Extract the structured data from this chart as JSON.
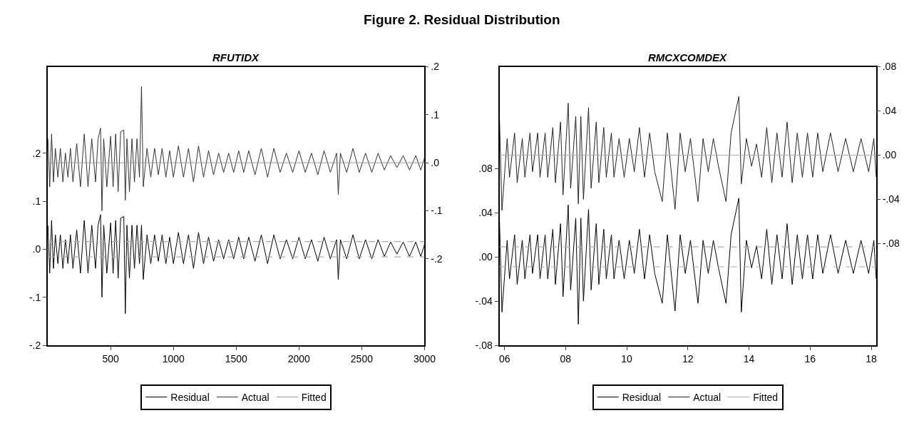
{
  "chart_data": [
    {
      "type": "line",
      "title": "Figure 2. Residual Distribution",
      "subtitle": "RFUTIDX",
      "legend": "bottom",
      "marker": "none",
      "line_style": "solid",
      "xlim": [
        0,
        3000
      ],
      "xticks": [
        500,
        1000,
        1500,
        2000,
        2500,
        3000
      ],
      "ylim": [
        -0.2,
        0.38
      ],
      "yticks": [
        {
          "value": 0.2,
          "label": ".2"
        },
        {
          "value": 0.1,
          "label": ".1"
        },
        {
          "value": 0,
          "label": ".0"
        },
        {
          "value": -0.1,
          "label": "-.1"
        },
        {
          "value": -0.2,
          "label": "-.2"
        }
      ],
      "y2lim": [
        -0.38,
        0.2
      ],
      "y2ticks": [
        {
          "value": 0.2,
          "label": ".2"
        },
        {
          "value": 0.1,
          "label": ".1"
        },
        {
          "value": 0,
          "label": ".0"
        },
        {
          "value": -0.1,
          "label": "-.1"
        },
        {
          "value": -0.2,
          "label": "-.2"
        }
      ],
      "ref_lines": [
        {
          "axis": "y",
          "value": 0.016,
          "color": "#aaaaaa",
          "line_style": "dashed"
        },
        {
          "axis": "y",
          "value": -0.016,
          "color": "#aaaaaa",
          "line_style": "dashed"
        }
      ],
      "series": [
        {
          "name": "Residual",
          "color": "#000000",
          "x": [
            1,
            15,
            30,
            45,
            60,
            80,
            100,
            120,
            140,
            160,
            180,
            200,
            230,
            260,
            290,
            320,
            350,
            380,
            400,
            420,
            431,
            445,
            470,
            500,
            520,
            540,
            560,
            580,
            605,
            617,
            630,
            650,
            670,
            690,
            710,
            730,
            746,
            760,
            790,
            820,
            850,
            880,
            910,
            940,
            970,
            1000,
            1040,
            1080,
            1120,
            1160,
            1200,
            1240,
            1280,
            1320,
            1360,
            1400,
            1440,
            1480,
            1520,
            1560,
            1600,
            1650,
            1700,
            1750,
            1800,
            1850,
            1900,
            1950,
            2000,
            2050,
            2100,
            2150,
            2200,
            2250,
            2300,
            2313,
            2330,
            2380,
            2430,
            2480,
            2530,
            2580,
            2630,
            2680,
            2730,
            2780,
            2830,
            2880,
            2930,
            2970,
            3000
          ],
          "values": [
            0.05,
            -0.05,
            0.06,
            -0.04,
            0.03,
            -0.03,
            0.03,
            -0.04,
            0.02,
            -0.03,
            0.03,
            -0.04,
            0.04,
            -0.05,
            0.06,
            -0.05,
            0.05,
            -0.04,
            0.05,
            0.072,
            -0.1,
            0.05,
            -0.05,
            0.055,
            -0.05,
            0.06,
            -0.06,
            0.065,
            0.068,
            -0.134,
            0.05,
            -0.06,
            0.05,
            -0.04,
            0.05,
            -0.03,
            0.05,
            -0.063,
            0.03,
            -0.03,
            0.03,
            -0.025,
            0.03,
            -0.03,
            0.025,
            -0.03,
            0.035,
            -0.03,
            0.03,
            -0.04,
            0.035,
            -0.03,
            0.025,
            -0.025,
            0.02,
            -0.02,
            0.02,
            -0.02,
            0.025,
            -0.02,
            0.025,
            -0.025,
            0.03,
            -0.03,
            0.03,
            -0.02,
            0.02,
            -0.02,
            0.025,
            -0.02,
            0.02,
            -0.025,
            0.025,
            -0.02,
            0.02,
            -0.063,
            0.02,
            -0.02,
            0.03,
            -0.02,
            0.02,
            -0.02,
            0.02,
            -0.015,
            0.015,
            -0.01,
            0.015,
            -0.015,
            0.015,
            -0.015,
            0.01
          ]
        },
        {
          "name": "Actual",
          "color": "#333333",
          "axis": "y2",
          "x": [
            1,
            15,
            30,
            45,
            60,
            80,
            100,
            120,
            140,
            160,
            180,
            200,
            230,
            260,
            290,
            320,
            350,
            380,
            400,
            420,
            431,
            445,
            470,
            500,
            520,
            540,
            560,
            580,
            605,
            617,
            630,
            650,
            670,
            690,
            710,
            730,
            746,
            760,
            790,
            820,
            850,
            880,
            910,
            940,
            970,
            1000,
            1040,
            1080,
            1120,
            1160,
            1200,
            1240,
            1280,
            1320,
            1360,
            1400,
            1440,
            1480,
            1520,
            1560,
            1600,
            1650,
            1700,
            1750,
            1800,
            1850,
            1900,
            1950,
            2000,
            2050,
            2100,
            2150,
            2200,
            2250,
            2300,
            2313,
            2330,
            2380,
            2430,
            2480,
            2530,
            2580,
            2630,
            2680,
            2730,
            2780,
            2830,
            2880,
            2930,
            2970,
            3000
          ],
          "values": [
            0.05,
            -0.05,
            0.06,
            -0.04,
            0.03,
            -0.03,
            0.03,
            -0.04,
            0.02,
            -0.03,
            0.03,
            -0.04,
            0.04,
            -0.05,
            0.06,
            -0.05,
            0.05,
            -0.04,
            0.05,
            0.072,
            -0.1,
            0.05,
            -0.05,
            0.055,
            -0.05,
            0.06,
            -0.06,
            0.065,
            0.068,
            -0.078,
            0.05,
            -0.06,
            0.05,
            -0.04,
            0.05,
            -0.03,
            0.159,
            -0.05,
            0.03,
            -0.03,
            0.03,
            -0.025,
            0.03,
            -0.03,
            0.025,
            -0.03,
            0.035,
            -0.03,
            0.03,
            -0.04,
            0.035,
            -0.03,
            0.025,
            -0.025,
            0.02,
            -0.02,
            0.02,
            -0.02,
            0.025,
            -0.02,
            0.025,
            -0.025,
            0.03,
            -0.03,
            0.03,
            -0.02,
            0.02,
            -0.02,
            0.025,
            -0.02,
            0.02,
            -0.025,
            0.025,
            -0.02,
            0.02,
            -0.066,
            0.02,
            -0.02,
            0.03,
            -0.02,
            0.02,
            -0.02,
            0.02,
            -0.015,
            0.015,
            -0.01,
            0.015,
            -0.015,
            0.015,
            -0.015,
            0.01
          ]
        },
        {
          "name": "Fitted",
          "color": "#999999",
          "axis": "y2",
          "x": [
            1,
            1000,
            2000,
            3000
          ],
          "values": [
            0,
            0,
            0,
            0
          ]
        }
      ]
    },
    {
      "type": "line",
      "subtitle": "RMCXCOMDEX",
      "legend": "bottom",
      "marker": "none",
      "line_style": "solid",
      "xlim": [
        "2005-11",
        "2018-03"
      ],
      "xticks": [
        {
          "value": "2006",
          "label": "06"
        },
        {
          "value": "2008",
          "label": "08"
        },
        {
          "value": "2010",
          "label": "10"
        },
        {
          "value": "2012",
          "label": "12"
        },
        {
          "value": "2014",
          "label": "14"
        },
        {
          "value": "2016",
          "label": "16"
        },
        {
          "value": "2018",
          "label": "18"
        }
      ],
      "ylim": [
        -0.08,
        0.172
      ],
      "yticks": [
        {
          "value": 0.08,
          "label": ".08"
        },
        {
          "value": 0.04,
          "label": ".04"
        },
        {
          "value": 0,
          "label": ".00"
        },
        {
          "value": -0.04,
          "label": "-.04"
        },
        {
          "value": -0.08,
          "label": "-.08"
        }
      ],
      "y2lim": [
        -0.172,
        0.08
      ],
      "y2ticks": [
        {
          "value": 0.08,
          "label": ".08"
        },
        {
          "value": 0.04,
          "label": ".04"
        },
        {
          "value": 0,
          "label": ".00"
        },
        {
          "value": -0.04,
          "label": "-.04"
        },
        {
          "value": -0.08,
          "label": "-.08"
        }
      ],
      "ref_lines": [
        {
          "axis": "y",
          "value": 0.009,
          "color": "#aaaaaa",
          "line_style": "dashed"
        },
        {
          "axis": "y",
          "value": -0.009,
          "color": "#aaaaaa",
          "line_style": "dashed"
        }
      ],
      "series": [
        {
          "name": "Residual",
          "color": "#000000",
          "x": [
            "2005-11",
            "2005-12",
            "2006-02",
            "2006-03",
            "2006-05",
            "2006-06",
            "2006-08",
            "2006-09",
            "2006-11",
            "2006-12",
            "2007-02",
            "2007-03",
            "2007-05",
            "2007-06",
            "2007-08",
            "2007-09",
            "2007-11",
            "2007-12",
            "2008-02",
            "2008-03",
            "2008-05",
            "2008-06",
            "2008-07",
            "2008-08",
            "2008-10",
            "2008-11",
            "2009-01",
            "2009-02",
            "2009-04",
            "2009-05",
            "2009-07",
            "2009-08",
            "2009-10",
            "2009-12",
            "2010-02",
            "2010-04",
            "2010-06",
            "2010-08",
            "2010-10",
            "2010-12",
            "2011-03",
            "2011-05",
            "2011-08",
            "2011-10",
            "2011-12",
            "2012-02",
            "2012-05",
            "2012-07",
            "2012-09",
            "2012-11",
            "2013-01",
            "2013-04",
            "2013-06",
            "2013-09",
            "2013-10",
            "2013-12",
            "2014-02",
            "2014-04",
            "2014-06",
            "2014-08",
            "2014-10",
            "2014-12",
            "2015-02",
            "2015-04",
            "2015-06",
            "2015-08",
            "2015-10",
            "2015-12",
            "2016-02",
            "2016-04",
            "2016-06",
            "2016-09",
            "2016-12",
            "2017-03",
            "2017-06",
            "2017-09",
            "2017-12",
            "2018-02",
            "2018-03"
          ],
          "values": [
            0.034,
            -0.05,
            0.015,
            -0.02,
            0.02,
            -0.025,
            0.015,
            -0.02,
            0.02,
            -0.015,
            0.02,
            -0.02,
            0.02,
            -0.02,
            0.025,
            -0.025,
            0.03,
            -0.036,
            0.047,
            -0.03,
            0.035,
            -0.061,
            0.035,
            -0.04,
            0.043,
            -0.03,
            0.03,
            -0.025,
            0.025,
            -0.02,
            0.02,
            -0.02,
            0.015,
            -0.02,
            0.015,
            -0.015,
            0.025,
            -0.02,
            0.02,
            -0.015,
            -0.042,
            0.02,
            -0.049,
            0.02,
            -0.015,
            0.015,
            -0.042,
            0.015,
            -0.015,
            0.015,
            -0.01,
            -0.042,
            0.02,
            0.053,
            -0.05,
            0.015,
            -0.01,
            0.01,
            -0.02,
            0.025,
            -0.025,
            0.02,
            -0.02,
            0.03,
            -0.025,
            0.02,
            -0.02,
            0.02,
            -0.02,
            0.02,
            -0.015,
            0.02,
            -0.015,
            0.015,
            -0.015,
            0.015,
            -0.015,
            0.015,
            -0.02
          ]
        },
        {
          "name": "Actual",
          "color": "#222222",
          "axis": "y2",
          "x": [
            "2005-11",
            "2005-12",
            "2006-02",
            "2006-03",
            "2006-05",
            "2006-06",
            "2006-08",
            "2006-09",
            "2006-11",
            "2006-12",
            "2007-02",
            "2007-03",
            "2007-05",
            "2007-06",
            "2007-08",
            "2007-09",
            "2007-11",
            "2007-12",
            "2008-02",
            "2008-03",
            "2008-05",
            "2008-06",
            "2008-07",
            "2008-08",
            "2008-10",
            "2008-11",
            "2009-01",
            "2009-02",
            "2009-04",
            "2009-05",
            "2009-07",
            "2009-08",
            "2009-10",
            "2009-12",
            "2010-02",
            "2010-04",
            "2010-06",
            "2010-08",
            "2010-10",
            "2010-12",
            "2011-03",
            "2011-05",
            "2011-08",
            "2011-10",
            "2011-12",
            "2012-02",
            "2012-05",
            "2012-07",
            "2012-09",
            "2012-11",
            "2013-01",
            "2013-04",
            "2013-06",
            "2013-09",
            "2013-10",
            "2013-12",
            "2014-02",
            "2014-04",
            "2014-06",
            "2014-08",
            "2014-10",
            "2014-12",
            "2015-02",
            "2015-04",
            "2015-06",
            "2015-08",
            "2015-10",
            "2015-12",
            "2016-02",
            "2016-04",
            "2016-06",
            "2016-09",
            "2016-12",
            "2017-03",
            "2017-06",
            "2017-09",
            "2017-12",
            "2018-02",
            "2018-03"
          ],
          "values": [
            0.034,
            -0.05,
            0.015,
            -0.02,
            0.02,
            -0.025,
            0.015,
            -0.02,
            0.02,
            -0.015,
            0.02,
            -0.02,
            0.02,
            -0.02,
            0.025,
            -0.025,
            0.03,
            -0.036,
            0.047,
            -0.03,
            0.035,
            -0.044,
            0.035,
            -0.04,
            0.043,
            -0.03,
            0.03,
            -0.025,
            0.025,
            -0.02,
            0.02,
            -0.02,
            0.015,
            -0.02,
            0.015,
            -0.015,
            0.025,
            -0.02,
            0.02,
            -0.015,
            -0.042,
            0.02,
            -0.049,
            0.02,
            -0.015,
            0.015,
            -0.042,
            0.015,
            -0.015,
            0.015,
            -0.01,
            -0.042,
            0.02,
            0.053,
            -0.026,
            0.015,
            -0.01,
            0.01,
            -0.02,
            0.025,
            -0.025,
            0.02,
            -0.02,
            0.03,
            -0.025,
            0.02,
            -0.02,
            0.02,
            -0.02,
            0.02,
            -0.015,
            0.02,
            -0.015,
            0.015,
            -0.015,
            0.015,
            -0.015,
            0.015,
            -0.02
          ]
        },
        {
          "name": "Fitted",
          "color": "#aaaaaa",
          "axis": "y2",
          "x": [
            "2005-11",
            "2010-01",
            "2014-01",
            "2018-03"
          ],
          "values": [
            0,
            0,
            0,
            0
          ]
        }
      ]
    }
  ]
}
